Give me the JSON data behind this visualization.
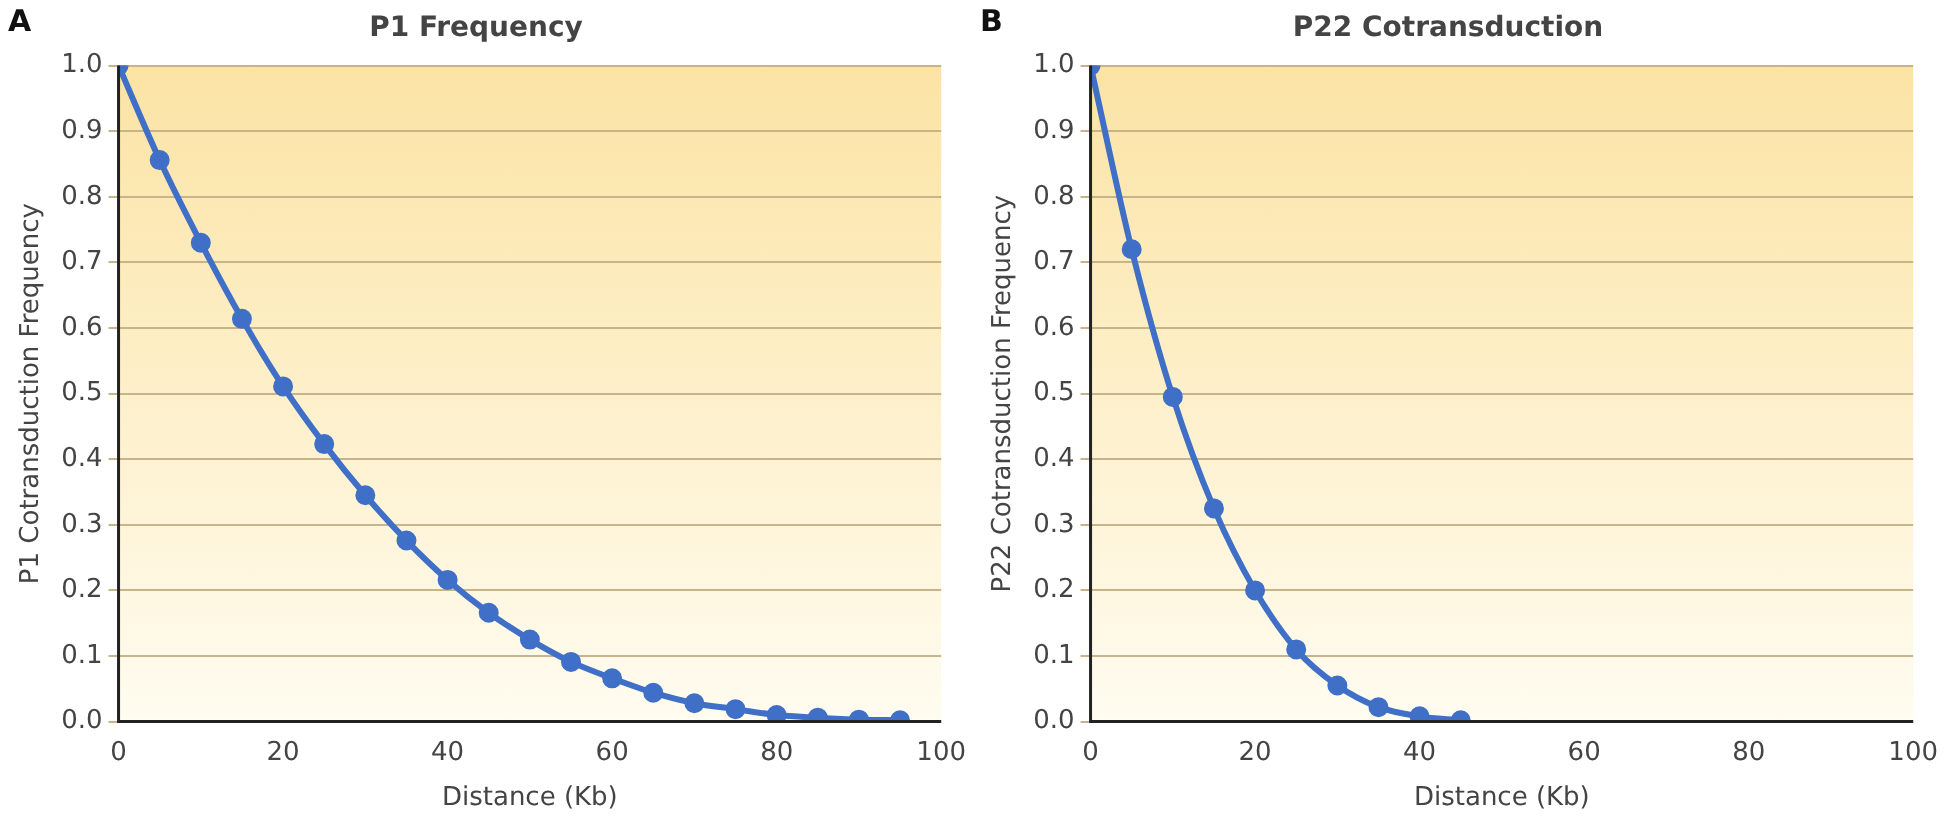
{
  "chart_data": [
    {
      "type": "line",
      "title": "P1 Frequency",
      "xlabel": "Distance (Kb)",
      "ylabel": "P1 Cotransduction Frequency",
      "annotations": [
        "A"
      ],
      "x": [
        0,
        5,
        10,
        15,
        20,
        25,
        30,
        35,
        40,
        45,
        50,
        55,
        60,
        65,
        70,
        75,
        80,
        85,
        90,
        95
      ],
      "series": [
        {
          "color": "#3f6fc6",
          "values": [
            1.0,
            0.856,
            0.73,
            0.614,
            0.511,
            0.423,
            0.345,
            0.276,
            0.216,
            0.166,
            0.125,
            0.091,
            0.066,
            0.044,
            0.028,
            0.019,
            0.01,
            0.006,
            0.003,
            0.002
          ]
        }
      ],
      "xlim": [
        0,
        100
      ],
      "xticks": [
        0,
        20,
        40,
        60,
        80,
        100
      ],
      "ylim": [
        0,
        1
      ],
      "yticks": [
        {
          "value": 0,
          "label": "0.0"
        },
        {
          "value": 0.1,
          "label": "0.1"
        },
        {
          "value": 0.2,
          "label": "0.2"
        },
        {
          "value": 0.3,
          "label": "0.3"
        },
        {
          "value": 0.4,
          "label": "0.4"
        },
        {
          "value": 0.5,
          "label": "0.5"
        },
        {
          "value": 0.6,
          "label": "0.6"
        },
        {
          "value": 0.7,
          "label": "0.7"
        },
        {
          "value": 0.8,
          "label": "0.8"
        },
        {
          "value": 0.9,
          "label": "0.9"
        },
        {
          "value": 1,
          "label": "1.0"
        }
      ],
      "grid": "y",
      "marker": "circle",
      "line_style": "solid"
    },
    {
      "type": "line",
      "title": "P22 Cotransduction",
      "xlabel": "Distance (Kb)",
      "ylabel": "P22 Cotransduction Frequency",
      "annotations": [
        "B"
      ],
      "x": [
        0,
        5,
        10,
        15,
        20,
        25,
        30,
        35,
        40,
        45
      ],
      "series": [
        {
          "color": "#3f6fc6",
          "values": [
            1.0,
            0.72,
            0.495,
            0.325,
            0.2,
            0.11,
            0.055,
            0.022,
            0.008,
            0.002
          ]
        }
      ],
      "xlim": [
        0,
        100
      ],
      "xticks": [
        0,
        20,
        40,
        60,
        80,
        100
      ],
      "ylim": [
        0,
        1
      ],
      "yticks": [
        {
          "value": 0,
          "label": "0.0"
        },
        {
          "value": 0.1,
          "label": "0.1"
        },
        {
          "value": 0.2,
          "label": "0.2"
        },
        {
          "value": 0.3,
          "label": "0.3"
        },
        {
          "value": 0.4,
          "label": "0.4"
        },
        {
          "value": 0.5,
          "label": "0.5"
        },
        {
          "value": 0.6,
          "label": "0.6"
        },
        {
          "value": 0.7,
          "label": "0.7"
        },
        {
          "value": 0.8,
          "label": "0.8"
        },
        {
          "value": 0.9,
          "label": "0.9"
        },
        {
          "value": 1,
          "label": "1.0"
        }
      ],
      "grid": "y",
      "marker": "circle",
      "line_style": "solid"
    }
  ]
}
